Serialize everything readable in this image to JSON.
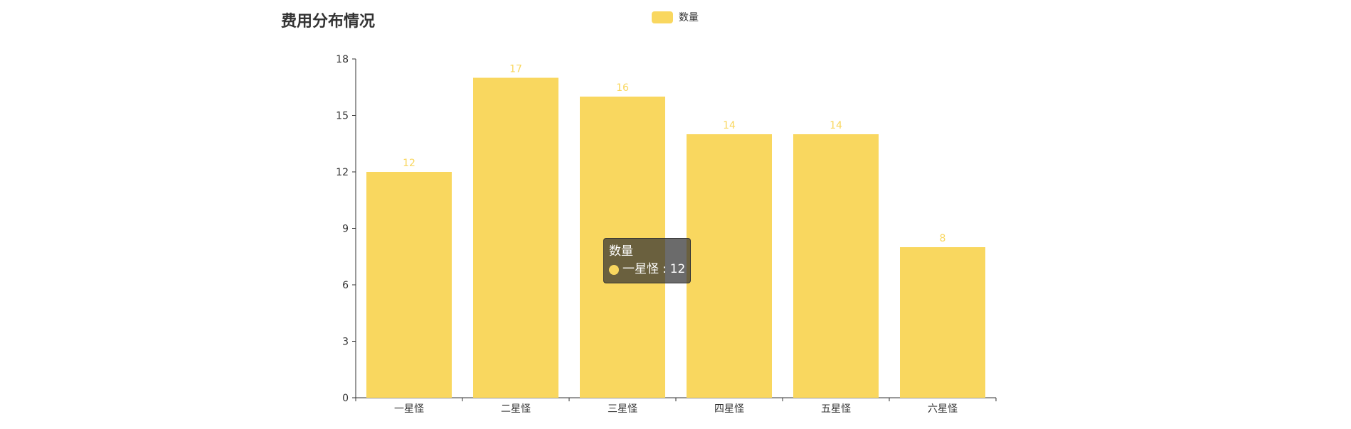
{
  "chart_data": {
    "type": "bar",
    "title": "费用分布情况",
    "categories": [
      "一星怪",
      "二星怪",
      "三星怪",
      "四星怪",
      "五星怪",
      "六星怪"
    ],
    "series": [
      {
        "name": "数量",
        "values": [
          12,
          17,
          16,
          14,
          14,
          8
        ],
        "color": "#f9d75f"
      }
    ],
    "ylim": [
      0,
      18
    ],
    "yticks": [
      0,
      3,
      6,
      9,
      12,
      15,
      18
    ],
    "grid": false,
    "legend_position": "top-center",
    "show_data_labels": true
  },
  "tooltip": {
    "series_name": "数量",
    "category": "一星怪",
    "value": "12"
  },
  "colors": {
    "bar": "#f9d75f",
    "label": "#f9d75f",
    "axis": "#333333",
    "text": "#333333"
  }
}
